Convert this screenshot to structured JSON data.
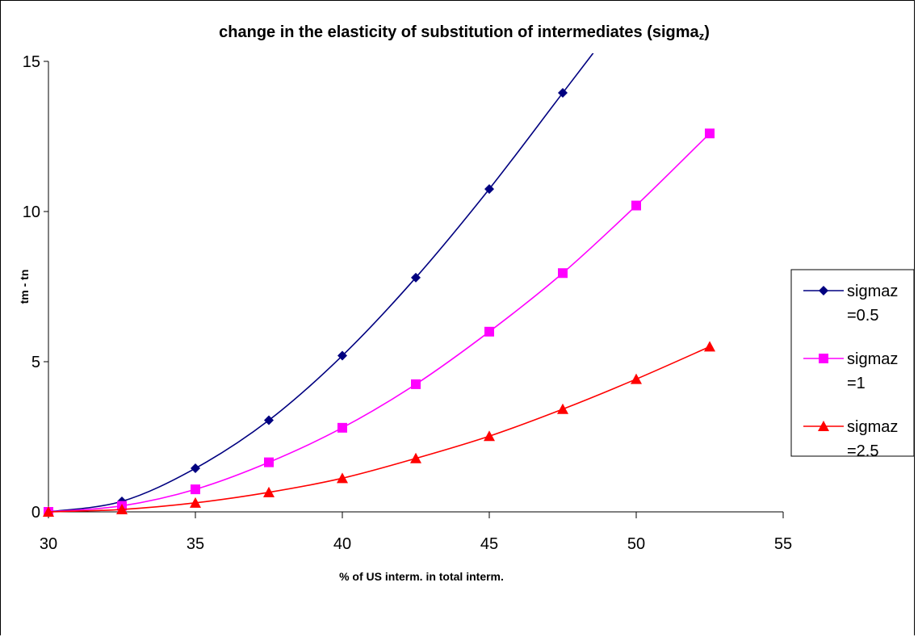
{
  "chart_data": {
    "type": "line",
    "title": "change in the elasticity of substitution of intermediates (sigma",
    "title_subscript": "z",
    "title_suffix": ")",
    "xlabel": "% of US  interm.  in total interm.",
    "ylabel": "tm - tn",
    "xlim": [
      30,
      55
    ],
    "ylim": [
      0,
      15
    ],
    "x_ticks": [
      "30",
      "35",
      "40",
      "45",
      "50",
      "55"
    ],
    "y_ticks": [
      "0",
      "5",
      "10",
      "15"
    ],
    "grid": false,
    "legend_position": "right",
    "series": [
      {
        "name_line1": "sigmaz",
        "name_line2": "=0.5",
        "color": "#000080",
        "marker": "diamond",
        "x": [
          30,
          32.5,
          35,
          37.5,
          40,
          42.5,
          45,
          47.5
        ],
        "y": [
          0,
          0.35,
          1.45,
          3.05,
          5.2,
          7.8,
          10.75,
          13.95
        ],
        "extends_to_top": true
      },
      {
        "name_line1": "sigmaz",
        "name_line2": "=1",
        "color": "#ff00ff",
        "marker": "square",
        "x": [
          30,
          32.5,
          35,
          37.5,
          40,
          42.5,
          45,
          47.5,
          50,
          52.5
        ],
        "y": [
          0,
          0.2,
          0.75,
          1.65,
          2.8,
          4.25,
          6.0,
          7.95,
          10.2,
          12.6
        ]
      },
      {
        "name_line1": "sigmaz",
        "name_line2": "=2.5",
        "color": "#ff0000",
        "marker": "triangle",
        "x": [
          30,
          32.5,
          35,
          37.5,
          40,
          42.5,
          45,
          47.5,
          50,
          52.5
        ],
        "y": [
          0,
          0.08,
          0.3,
          0.65,
          1.12,
          1.78,
          2.52,
          3.42,
          4.42,
          5.5
        ]
      }
    ]
  }
}
